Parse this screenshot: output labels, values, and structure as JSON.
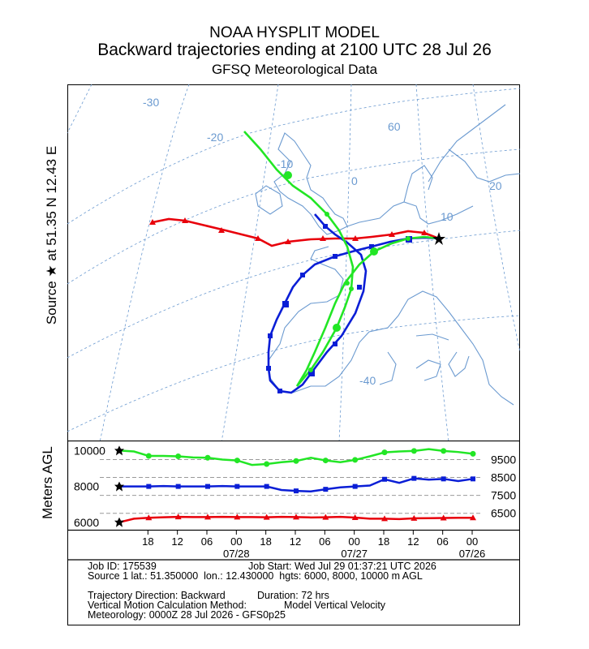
{
  "header": {
    "title": "NOAA HYSPLIT MODEL",
    "subtitle": "Backward trajectories ending at 2100 UTC 28 Jul 26",
    "data_source": "GFSQ Meteorological Data"
  },
  "left_axis": {
    "source_label": "Source ★ at 51.35 N 12.43 E",
    "height_label": "Meters AGL"
  },
  "map": {
    "grid_labels": [
      "-30",
      "-20",
      "-10",
      "0",
      "60",
      "20",
      "10",
      "-40"
    ]
  },
  "footer": {
    "job_id": "Job ID: 175539",
    "job_start": "Job Start: Wed Jul 29 01:37:21 UTC 2026",
    "source_line": "Source 1 lat.: 51.350000  lon.: 12.430000  hgts: 6000, 8000, 10000 m AGL",
    "direction": "Trajectory Direction: Backward",
    "duration": "Duration: 72 hrs",
    "vertical_method": "Vertical Motion Calculation Method:",
    "vertical_value": "Model Vertical Velocity",
    "meteorology": "Meteorology: 0000Z 28 Jul 2026 - GFS0p25"
  },
  "colors": {
    "red": "#e8000b",
    "blue": "#0a1ed6",
    "green": "#22e625",
    "map_lines": "#6b9ad0"
  },
  "chart_data": {
    "type": "line",
    "title": "Backward trajectories ending at 2100 UTC 28 Jul 26",
    "ylabel": "Meters AGL",
    "x_tick_labels": [
      "18",
      "12",
      "06",
      "00",
      "18",
      "12",
      "06",
      "00",
      "18",
      "12",
      "06",
      "00"
    ],
    "date_labels": [
      "07/28",
      "07/27",
      "07/26"
    ],
    "y_left_ticks": [
      10000,
      8000,
      6000
    ],
    "y_right_ticks": [
      9500,
      8500,
      7500,
      6500
    ],
    "ylim": [
      5900,
      10200
    ],
    "x": [
      "21Z 07/28",
      "18Z 07/28",
      "15Z 07/28",
      "12Z 07/28",
      "09Z 07/28",
      "06Z 07/28",
      "03Z 07/28",
      "00Z 07/28",
      "21Z 07/27",
      "18Z 07/27",
      "15Z 07/27",
      "12Z 07/27",
      "09Z 07/27",
      "06Z 07/27",
      "03Z 07/27",
      "00Z 07/27",
      "21Z 07/26",
      "18Z 07/26",
      "15Z 07/26",
      "12Z 07/26",
      "09Z 07/26",
      "06Z 07/26",
      "03Z 07/26",
      "00Z 07/26",
      "21Z 07/25"
    ],
    "series": [
      {
        "color": "red",
        "start_height": 6000,
        "values": [
          6000,
          6200,
          6250,
          6280,
          6300,
          6290,
          6290,
          6300,
          6290,
          6290,
          6280,
          6300,
          6290,
          6270,
          6280,
          6300,
          6260,
          6200,
          6200,
          6180,
          6220,
          6230,
          6240,
          6250,
          6250
        ]
      },
      {
        "color": "blue",
        "start_height": 8000,
        "values": [
          8000,
          8000,
          8000,
          8020,
          8000,
          8000,
          8000,
          8020,
          8000,
          8000,
          8000,
          7800,
          7750,
          7720,
          7840,
          7950,
          8000,
          8050,
          8400,
          8200,
          8450,
          8380,
          8420,
          8300,
          8420
        ]
      },
      {
        "color": "green",
        "start_height": 10000,
        "values": [
          10000,
          9950,
          9700,
          9700,
          9680,
          9620,
          9600,
          9500,
          9450,
          9200,
          9250,
          9350,
          9420,
          9600,
          9450,
          9350,
          9480,
          9680,
          9900,
          9950,
          9980,
          10080,
          9980,
          9920,
          9820
        ]
      }
    ]
  }
}
